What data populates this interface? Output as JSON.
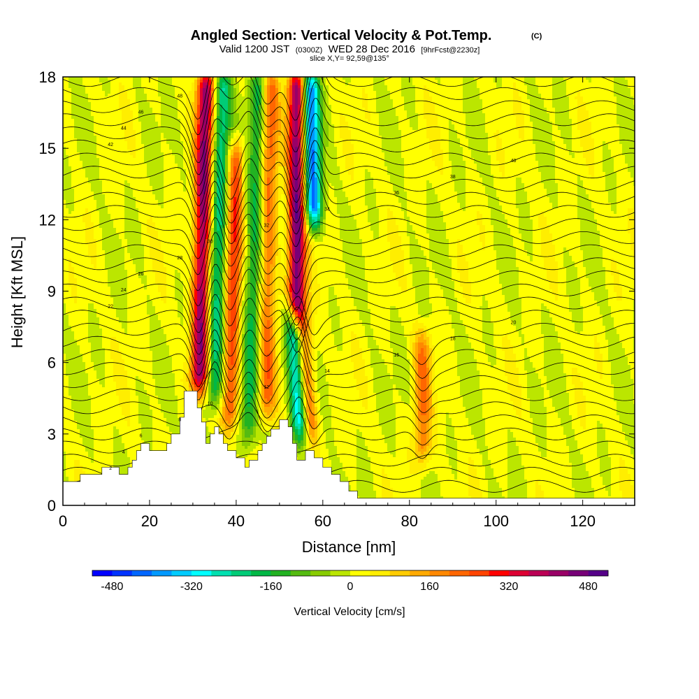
{
  "header": {
    "title": "Angled Section: Vertical Velocity & Pot.Temp.",
    "title_unit": "(C)",
    "valid_prefix": "Valid 1200 JST",
    "valid_utc": "(0300Z)",
    "valid_date": "WED 28 Dec 2016",
    "valid_fcst": "[9hrFcst@2230z]",
    "slice": "slice X,Y= 92,59@135°"
  },
  "chart_data": {
    "type": "heatmap",
    "xlabel": "Distance [nm]",
    "ylabel": "Height [Kft MSL]",
    "xlim": [
      0,
      132
    ],
    "ylim": [
      0,
      18
    ],
    "x_ticks": [
      "0",
      "20",
      "40",
      "60",
      "80",
      "100",
      "120"
    ],
    "x_tick_values": [
      0,
      20,
      40,
      60,
      80,
      100,
      120
    ],
    "y_ticks": [
      "0",
      "3",
      "6",
      "9",
      "12",
      "15",
      "18"
    ],
    "y_tick_values": [
      0,
      3,
      6,
      9,
      12,
      15,
      18
    ],
    "colorbar": {
      "label": "Vertical Velocity [cm/s]",
      "range": [
        -520,
        520
      ],
      "step": 40,
      "tick_labels": [
        "-480",
        "-320",
        "-160",
        "0",
        "160",
        "320",
        "480"
      ],
      "tick_values": [
        -480,
        -320,
        -160,
        0,
        160,
        320,
        480
      ],
      "colors": [
        "#0000ff",
        "#0033ff",
        "#0066ff",
        "#0099ff",
        "#00ccff",
        "#00ffff",
        "#00e0b0",
        "#00cc77",
        "#00b846",
        "#22b222",
        "#55bb11",
        "#88cc00",
        "#bbe600",
        "#ffff00",
        "#ffee00",
        "#ffcc00",
        "#ffaa00",
        "#ff8800",
        "#ff6600",
        "#ff4400",
        "#ff0000",
        "#dd0033",
        "#bb0055",
        "#990066",
        "#770077",
        "#550088"
      ]
    },
    "shading": {
      "base_value": 10,
      "features": [
        {
          "kind": "updraft",
          "x": 31.5,
          "y_bottom": 5.0,
          "y_top": 18,
          "x_top": 33,
          "value": 420
        },
        {
          "kind": "downdraft",
          "x": 35,
          "y_bottom": 4.5,
          "y_top": 18,
          "x_top": 37,
          "value": -240
        },
        {
          "kind": "updraft",
          "x": 38.5,
          "y_bottom": 3.5,
          "y_top": 15,
          "x_top": 40,
          "value": 260
        },
        {
          "kind": "downdraft",
          "x": 43,
          "y_bottom": 3.0,
          "y_top": 18,
          "x_top": 45,
          "value": -180
        },
        {
          "kind": "updraft",
          "x": 47,
          "y_bottom": 4.0,
          "y_top": 18,
          "x_top": 48,
          "value": 200
        },
        {
          "kind": "downdraft",
          "x": 55,
          "y_bottom": 3.0,
          "y_top": 8,
          "x_top": 53,
          "value": -360
        },
        {
          "kind": "updraft",
          "x": 54,
          "y_bottom": 8.0,
          "y_top": 18,
          "x_top": 54,
          "value": 460
        },
        {
          "kind": "downdraft",
          "x": 58,
          "y_bottom": 12,
          "y_top": 18,
          "x_top": 57,
          "value": -420
        },
        {
          "kind": "updraft",
          "x": 57,
          "y_bottom": 3.0,
          "y_top": 8,
          "x_top": 55,
          "value": 260
        },
        {
          "kind": "updraft",
          "x": 83,
          "y_bottom": 2.0,
          "y_top": 7,
          "x_top": 83,
          "value": 180
        }
      ]
    },
    "terrain": [
      [
        0,
        1.0
      ],
      [
        4,
        1.0
      ],
      [
        4,
        1.3
      ],
      [
        9,
        1.3
      ],
      [
        9,
        1.6
      ],
      [
        13,
        1.6
      ],
      [
        13,
        1.3
      ],
      [
        15,
        1.3
      ],
      [
        15,
        1.6
      ],
      [
        16,
        1.6
      ],
      [
        16,
        1.9
      ],
      [
        17,
        1.9
      ],
      [
        17,
        2.3
      ],
      [
        18,
        2.3
      ],
      [
        18,
        2.6
      ],
      [
        20,
        2.6
      ],
      [
        20,
        2.3
      ],
      [
        24,
        2.3
      ],
      [
        24,
        2.6
      ],
      [
        25,
        2.6
      ],
      [
        25,
        3.0
      ],
      [
        27,
        3.0
      ],
      [
        27,
        3.7
      ],
      [
        28,
        3.7
      ],
      [
        28,
        4.8
      ],
      [
        31,
        4.8
      ],
      [
        31,
        4.1
      ],
      [
        32,
        4.1
      ],
      [
        32,
        3.5
      ],
      [
        33,
        3.5
      ],
      [
        33,
        2.6
      ],
      [
        34,
        2.6
      ],
      [
        34,
        3.0
      ],
      [
        35,
        3.0
      ],
      [
        35,
        3.3
      ],
      [
        36,
        3.3
      ],
      [
        36,
        3.0
      ],
      [
        37,
        3.0
      ],
      [
        37,
        2.6
      ],
      [
        38,
        2.6
      ],
      [
        38,
        2.3
      ],
      [
        40,
        2.3
      ],
      [
        40,
        2.0
      ],
      [
        42,
        2.0
      ],
      [
        42,
        1.6
      ],
      [
        43,
        1.6
      ],
      [
        43,
        1.9
      ],
      [
        45,
        1.9
      ],
      [
        45,
        2.3
      ],
      [
        46,
        2.3
      ],
      [
        46,
        2.6
      ],
      [
        47,
        2.6
      ],
      [
        47,
        2.9
      ],
      [
        48,
        2.9
      ],
      [
        48,
        3.2
      ],
      [
        50,
        3.2
      ],
      [
        50,
        3.6
      ],
      [
        52,
        3.6
      ],
      [
        52,
        3.3
      ],
      [
        53,
        3.3
      ],
      [
        53,
        2.6
      ],
      [
        54,
        2.6
      ],
      [
        54,
        1.9
      ],
      [
        56,
        1.9
      ],
      [
        56,
        2.3
      ],
      [
        58,
        2.3
      ],
      [
        58,
        2.0
      ],
      [
        60,
        2.0
      ],
      [
        60,
        1.6
      ],
      [
        62,
        1.6
      ],
      [
        62,
        1.3
      ],
      [
        64,
        1.3
      ],
      [
        64,
        1.0
      ],
      [
        66,
        1.0
      ],
      [
        66,
        0.6
      ],
      [
        68,
        0.6
      ],
      [
        68,
        0.3
      ],
      [
        132,
        0.3
      ]
    ],
    "contours": {
      "values_start": 0,
      "values_step": 2,
      "count": 32,
      "labeled": [
        "2",
        "4",
        "6",
        "8",
        "10",
        "12",
        "14",
        "16",
        "18",
        "20",
        "22",
        "24",
        "26",
        "28",
        "30",
        "32",
        "34",
        "36",
        "38",
        "40",
        "42",
        "44",
        "46",
        "48"
      ]
    }
  }
}
